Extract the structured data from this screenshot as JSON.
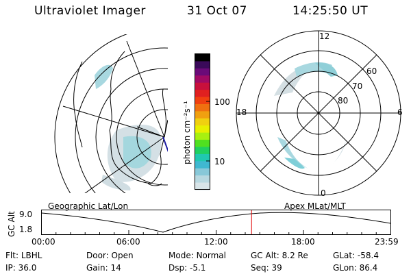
{
  "header": {
    "instrument": "Ultraviolet Imager",
    "date": "31 Oct 07",
    "time": "14:25:50 UT"
  },
  "colorbar": {
    "label": "photon cm⁻²s⁻¹",
    "ticks": [
      "100",
      "10"
    ],
    "colors": [
      "#000000",
      "#3a0a5a",
      "#6a0a78",
      "#a00a64",
      "#c8103c",
      "#e02020",
      "#f04010",
      "#f07010",
      "#f0a010",
      "#f0d010",
      "#e8f000",
      "#a8f010",
      "#50e020",
      "#20d060",
      "#20c8b0",
      "#40b8d0",
      "#88c8d8",
      "#b8d8e0",
      "#d8e4e8"
    ]
  },
  "left_map": {
    "label": "Geographic Lat/Lon"
  },
  "right_map": {
    "label": "Apex MLat/MLT",
    "mlt_labels": {
      "top": "12",
      "bottom": "0",
      "left": "18",
      "right": "6"
    },
    "mlat_labels": [
      "60",
      "70",
      "80"
    ]
  },
  "timeline": {
    "axis_label": "GC Alt",
    "y_ticks": [
      "9.0",
      "1.8"
    ],
    "x_ticks": [
      "00:00",
      "06:00",
      "12:00",
      "18:00",
      "23:59"
    ],
    "current_time_fraction": 0.6014,
    "marker_color": "#e00000"
  },
  "info": {
    "row1": [
      {
        "label": "Flt:",
        "value": "LBHL"
      },
      {
        "label": "Door:",
        "value": "Open"
      },
      {
        "label": "Mode:",
        "value": "Normal"
      },
      {
        "label": "GC Alt:",
        "value": "8.2 Re"
      },
      {
        "label": "GLat:",
        "value": "-58.4"
      }
    ],
    "row2": [
      {
        "label": "IP:",
        "value": "36.0"
      },
      {
        "label": "Gain:",
        "value": "14"
      },
      {
        "label": "Dsp:",
        "value": "-5.1"
      },
      {
        "label": "Seq:",
        "value": "39"
      },
      {
        "label": "GLon:",
        "value": "86.4"
      }
    ]
  }
}
